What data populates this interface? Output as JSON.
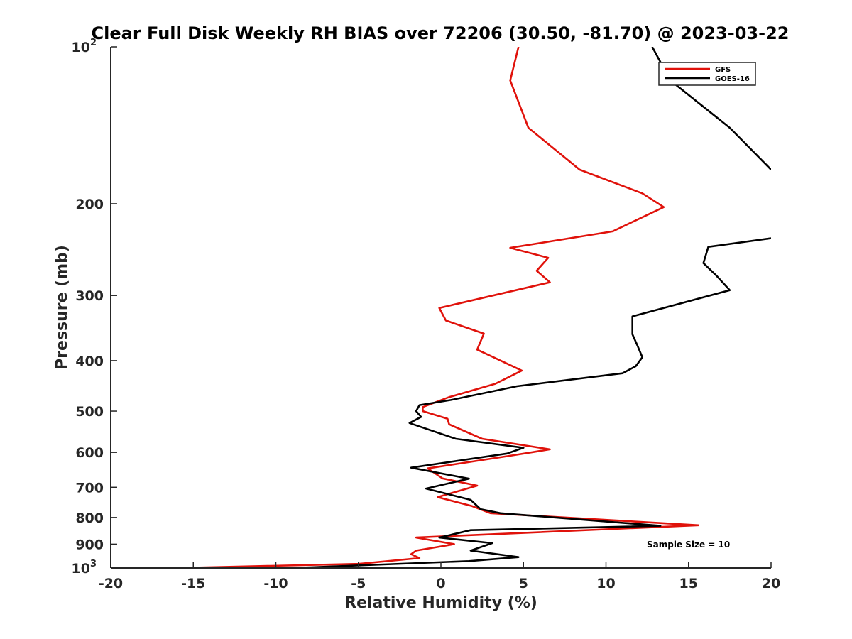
{
  "chart_data": {
    "type": "line",
    "title": "Clear Full Disk Weekly RH BIAS over 72206 (30.50, -81.70) @ 2023-03-22",
    "xlabel": "Relative Humidity (%)",
    "ylabel": "Pressure (mb)",
    "xlim": [
      -20,
      20
    ],
    "ylim": [
      100,
      1000
    ],
    "y_scale": "log",
    "y_reversed": true,
    "grid": false,
    "x_ticks": [
      -20,
      -15,
      -10,
      -5,
      0,
      5,
      10,
      15,
      20
    ],
    "x_tick_labels": [
      "-20",
      "-15",
      "-10",
      "-5",
      "0",
      "5",
      "10",
      "15",
      "20"
    ],
    "y_ticks": [
      {
        "value": 100,
        "label": "10",
        "sup": "2"
      },
      {
        "value": 200,
        "label": "200",
        "sup": ""
      },
      {
        "value": 300,
        "label": "300",
        "sup": ""
      },
      {
        "value": 400,
        "label": "400",
        "sup": ""
      },
      {
        "value": 500,
        "label": "500",
        "sup": ""
      },
      {
        "value": 600,
        "label": "600",
        "sup": ""
      },
      {
        "value": 700,
        "label": "700",
        "sup": ""
      },
      {
        "value": 800,
        "label": "800",
        "sup": ""
      },
      {
        "value": 900,
        "label": "900",
        "sup": ""
      },
      {
        "value": 1000,
        "label": "10",
        "sup": "3"
      }
    ],
    "legend_position": "top-right",
    "series": [
      {
        "name": "GFS",
        "color": "#e0120b",
        "x": [
          4.7,
          4.2,
          5.3,
          8.4,
          12.2,
          13.5,
          10.4,
          4.2,
          6.5,
          5.8,
          6.6,
          -0.1,
          0.3,
          2.6,
          2.2,
          4.9,
          3.3,
          0.5,
          -1.1,
          -1.1,
          0.4,
          0.5,
          2.5,
          6.6,
          4.2,
          -0.8,
          0.1,
          2.2,
          -0.2,
          1.9,
          3.0,
          15.6,
          -1.5,
          0.8,
          -1.5,
          -1.8,
          -1.3,
          -5.0,
          -16.0
        ],
        "y": [
          100,
          116,
          143,
          172,
          191,
          203,
          226,
          243,
          254,
          269,
          283,
          317,
          335,
          355,
          381,
          418,
          443,
          470,
          491,
          500,
          517,
          530,
          565,
          592,
          609,
          644,
          673,
          695,
          731,
          761,
          785,
          828,
          874,
          900,
          926,
          941,
          957,
          982,
          1000
        ]
      },
      {
        "name": "GOES-16",
        "color": "#000000",
        "x": [
          12.8,
          13.9,
          17.5,
          20.0,
          null,
          20.0,
          16.2,
          15.9,
          16.7,
          17.5,
          11.6,
          11.6,
          11.9,
          12.2,
          11.8,
          11.0,
          4.6,
          0.6,
          -1.3,
          -1.5,
          -1.2,
          -1.9,
          0.9,
          5.0,
          4.0,
          -1.8,
          1.7,
          -0.9,
          1.8,
          2.4,
          3.6,
          13.3,
          1.8,
          -0.1,
          3.1,
          1.8,
          4.7,
          1.7,
          -9.0
        ],
        "y": [
          100,
          116,
          143,
          172,
          null,
          233,
          242,
          260,
          275,
          293,
          329,
          356,
          374,
          394,
          410,
          423,
          448,
          476,
          487,
          500,
          513,
          527,
          565,
          588,
          603,
          642,
          674,
          704,
          740,
          771,
          785,
          830,
          846,
          874,
          896,
          926,
          953,
          970,
          1000
        ]
      }
    ],
    "visible_segments_note": "",
    "annotation": "Sample Size = 10"
  }
}
